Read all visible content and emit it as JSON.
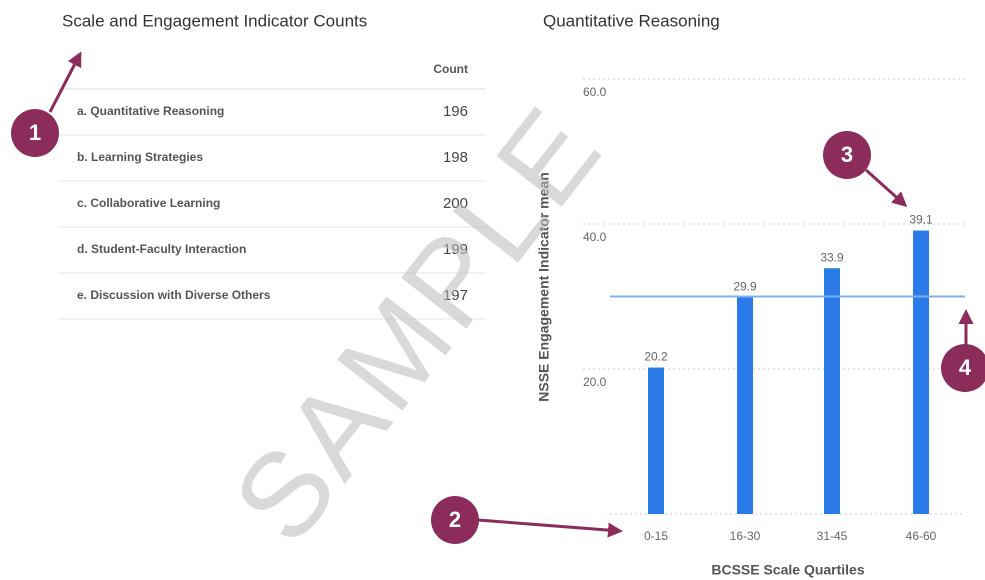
{
  "table": {
    "title": "Scale and Engagement Indicator Counts",
    "header": "Count",
    "rows": [
      [
        "a. Quantitative Reasoning",
        196
      ],
      [
        "b. Learning Strategies",
        198
      ],
      [
        "c. Collaborative Learning",
        200
      ],
      [
        "d. Student-Faculty Interaction",
        199
      ],
      [
        "e. Discussion with Diverse Others",
        197
      ]
    ]
  },
  "chart_data": {
    "type": "bar",
    "title": "Quantitative Reasoning",
    "x_label": "BCSSE Scale Quartiles",
    "y_label": "NSSE Engagement Indicator mean",
    "categories": [
      "0-15",
      "16-30",
      "31-45",
      "46-60"
    ],
    "values": [
      20.2,
      29.9,
      33.9,
      39.1
    ],
    "color": "#2a7be8",
    "ylim": [
      0,
      60
    ],
    "yticks": [
      {
        "value": 20,
        "label": "20.0"
      },
      {
        "value": 40,
        "label": "40.0"
      },
      {
        "value": 60,
        "label": "60.0"
      }
    ],
    "grid": true,
    "reference_line": 30,
    "reference_color": "#7fb0f0"
  },
  "annotations": [
    "1",
    "2",
    "3",
    "4"
  ],
  "watermark": "SAMPLE"
}
